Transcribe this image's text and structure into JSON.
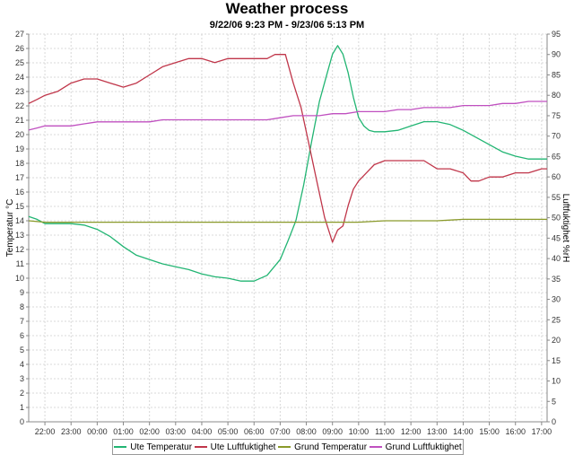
{
  "chart_data": {
    "type": "line",
    "title": "Weather process",
    "subtitle": "9/22/06 9:23 PM - 9/23/06 5:13 PM",
    "ylabel_left": "Temperatur °C",
    "ylabel_right": "Luftfuktighet %rH",
    "ylim_left": [
      0,
      27
    ],
    "ylim_right": [
      0,
      95
    ],
    "grid": true,
    "legend_position": "bottom",
    "x_ticks": [
      "22:00",
      "23:00",
      "00:00",
      "01:00",
      "02:00",
      "03:00",
      "04:00",
      "05:00",
      "06:00",
      "07:00",
      "08:00",
      "09:00",
      "10:00",
      "11:00",
      "12:00",
      "13:00",
      "14:00",
      "15:00",
      "16:00",
      "17:00"
    ],
    "y_ticks_left": [
      0,
      1,
      2,
      3,
      4,
      5,
      6,
      7,
      8,
      9,
      10,
      11,
      12,
      13,
      14,
      15,
      16,
      17,
      18,
      19,
      20,
      21,
      22,
      23,
      24,
      25,
      26,
      27
    ],
    "y_ticks_right": [
      0,
      5,
      10,
      15,
      20,
      25,
      30,
      35,
      40,
      45,
      50,
      55,
      60,
      65,
      70,
      75,
      80,
      85,
      90,
      95
    ],
    "series": [
      {
        "name": "Ute Temperatur",
        "axis": "left",
        "color": "#22b573",
        "x": [
          21.38,
          21.7,
          22.0,
          22.5,
          23.0,
          23.5,
          24.0,
          24.5,
          25.0,
          25.5,
          26.0,
          26.5,
          27.0,
          27.5,
          28.0,
          28.5,
          29.0,
          29.5,
          30.0,
          30.5,
          31.0,
          31.3,
          31.6,
          31.9,
          32.2,
          32.5,
          32.8,
          33.0,
          33.2,
          33.4,
          33.6,
          33.8,
          34.0,
          34.2,
          34.4,
          34.6,
          34.8,
          35.0,
          35.5,
          36.0,
          36.5,
          37.0,
          37.5,
          38.0,
          38.5,
          39.0,
          39.5,
          40.0,
          40.5,
          41.0,
          41.21
        ],
        "y": [
          14.3,
          14.1,
          13.8,
          13.8,
          13.8,
          13.7,
          13.4,
          12.9,
          12.2,
          11.6,
          11.3,
          11.0,
          10.8,
          10.6,
          10.3,
          10.1,
          10.0,
          9.8,
          9.8,
          10.2,
          11.3,
          12.6,
          14.0,
          16.5,
          19.5,
          22.3,
          24.3,
          25.6,
          26.2,
          25.6,
          24.3,
          22.6,
          21.2,
          20.6,
          20.3,
          20.2,
          20.2,
          20.2,
          20.3,
          20.6,
          20.9,
          20.9,
          20.7,
          20.3,
          19.8,
          19.3,
          18.8,
          18.5,
          18.3,
          18.3,
          18.3
        ]
      },
      {
        "name": "Ute Luftfuktighet",
        "axis": "right",
        "color": "#c0364a",
        "x": [
          21.38,
          21.7,
          22.0,
          22.5,
          23.0,
          23.5,
          24.0,
          24.5,
          25.0,
          25.5,
          26.0,
          26.5,
          27.0,
          27.5,
          28.0,
          28.5,
          29.0,
          29.5,
          30.0,
          30.5,
          30.8,
          31.2,
          31.5,
          31.8,
          32.1,
          32.4,
          32.7,
          33.0,
          33.2,
          33.4,
          33.6,
          33.8,
          34.0,
          34.3,
          34.6,
          35.0,
          35.5,
          36.0,
          36.5,
          37.0,
          37.5,
          38.0,
          38.3,
          38.6,
          39.0,
          39.5,
          40.0,
          40.5,
          41.0,
          41.21
        ],
        "y": [
          78,
          79,
          80,
          81,
          83,
          84,
          84,
          83,
          82,
          83,
          85,
          87,
          88,
          89,
          89,
          88,
          89,
          89,
          89,
          89,
          90,
          90,
          83,
          77,
          68,
          59,
          50,
          44,
          47,
          48,
          53,
          57,
          59,
          61,
          63,
          64,
          64,
          64,
          64,
          62,
          62,
          61,
          59,
          59,
          60,
          60,
          61,
          61,
          62,
          62
        ]
      },
      {
        "name": "Grund Temperatur",
        "axis": "left",
        "color": "#8a9a2a",
        "x": [
          21.38,
          22.0,
          24.0,
          26.0,
          28.0,
          30.0,
          31.0,
          32.0,
          33.0,
          34.0,
          35.0,
          36.0,
          37.0,
          38.0,
          39.0,
          40.0,
          41.21
        ],
        "y": [
          14.0,
          13.9,
          13.9,
          13.9,
          13.9,
          13.9,
          13.9,
          13.9,
          13.9,
          13.9,
          14.0,
          14.0,
          14.0,
          14.1,
          14.1,
          14.1,
          14.1
        ]
      },
      {
        "name": "Grund Luftfuktighet",
        "axis": "right",
        "color": "#c050c0",
        "x": [
          21.38,
          21.7,
          22.0,
          22.5,
          23.0,
          23.5,
          24.0,
          24.5,
          25.0,
          25.5,
          26.0,
          26.5,
          27.0,
          27.5,
          28.0,
          28.5,
          29.0,
          29.5,
          30.0,
          30.5,
          31.0,
          31.5,
          32.0,
          32.5,
          33.0,
          33.5,
          34.0,
          34.5,
          35.0,
          35.5,
          36.0,
          36.5,
          37.0,
          37.5,
          38.0,
          38.5,
          39.0,
          39.5,
          40.0,
          40.5,
          41.0,
          41.21
        ],
        "y": [
          71.5,
          72,
          72.5,
          72.5,
          72.5,
          73,
          73.5,
          73.5,
          73.5,
          73.5,
          73.5,
          74,
          74,
          74,
          74,
          74,
          74,
          74,
          74,
          74,
          74.5,
          75,
          75,
          75,
          75.5,
          75.5,
          76,
          76,
          76,
          76.5,
          76.5,
          77,
          77,
          77,
          77.5,
          77.5,
          77.5,
          78,
          78,
          78.5,
          78.5,
          78.5
        ]
      }
    ]
  },
  "legend": {
    "items": [
      "Ute Temperatur",
      "Ute Luftfuktighet",
      "Grund Temperatur",
      "Grund Luftfuktighet"
    ]
  }
}
